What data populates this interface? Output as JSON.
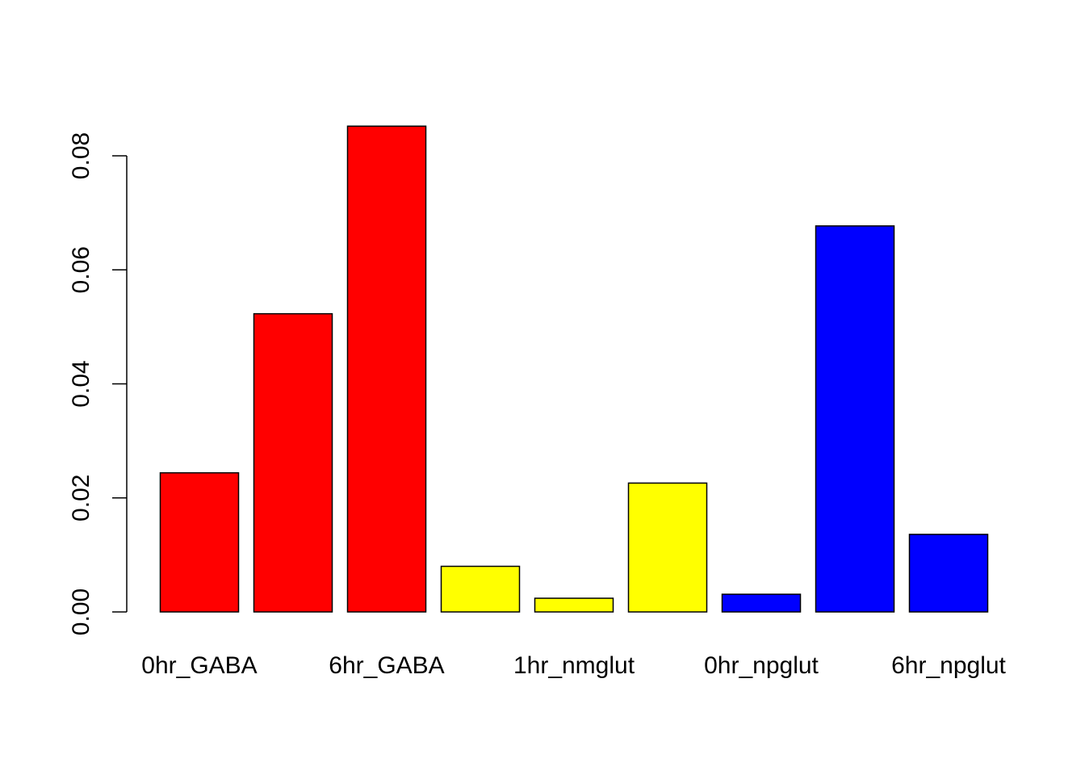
{
  "chart_data": {
    "type": "bar",
    "title": "",
    "xlabel": "",
    "ylabel": "",
    "ylim": [
      0,
      0.085
    ],
    "yticks": [
      0.0,
      0.02,
      0.04,
      0.06,
      0.08
    ],
    "ytick_labels": [
      "0.00",
      "0.02",
      "0.04",
      "0.06",
      "0.08"
    ],
    "grid": false,
    "legend": "none",
    "x_labels_shown": [
      "0hr_GABA",
      "6hr_GABA",
      "1hr_nmglut",
      "0hr_npglut",
      "6hr_npglut"
    ],
    "bars": [
      {
        "value": 0.0244,
        "color": "#ff0000"
      },
      {
        "value": 0.0523,
        "color": "#ff0000"
      },
      {
        "value": 0.0852,
        "color": "#ff0000"
      },
      {
        "value": 0.008,
        "color": "#ffff00"
      },
      {
        "value": 0.0024,
        "color": "#ffff00"
      },
      {
        "value": 0.0226,
        "color": "#ffff00"
      },
      {
        "value": 0.0031,
        "color": "#0000ff"
      },
      {
        "value": 0.0677,
        "color": "#0000ff"
      },
      {
        "value": 0.0136,
        "color": "#0000ff"
      }
    ]
  }
}
